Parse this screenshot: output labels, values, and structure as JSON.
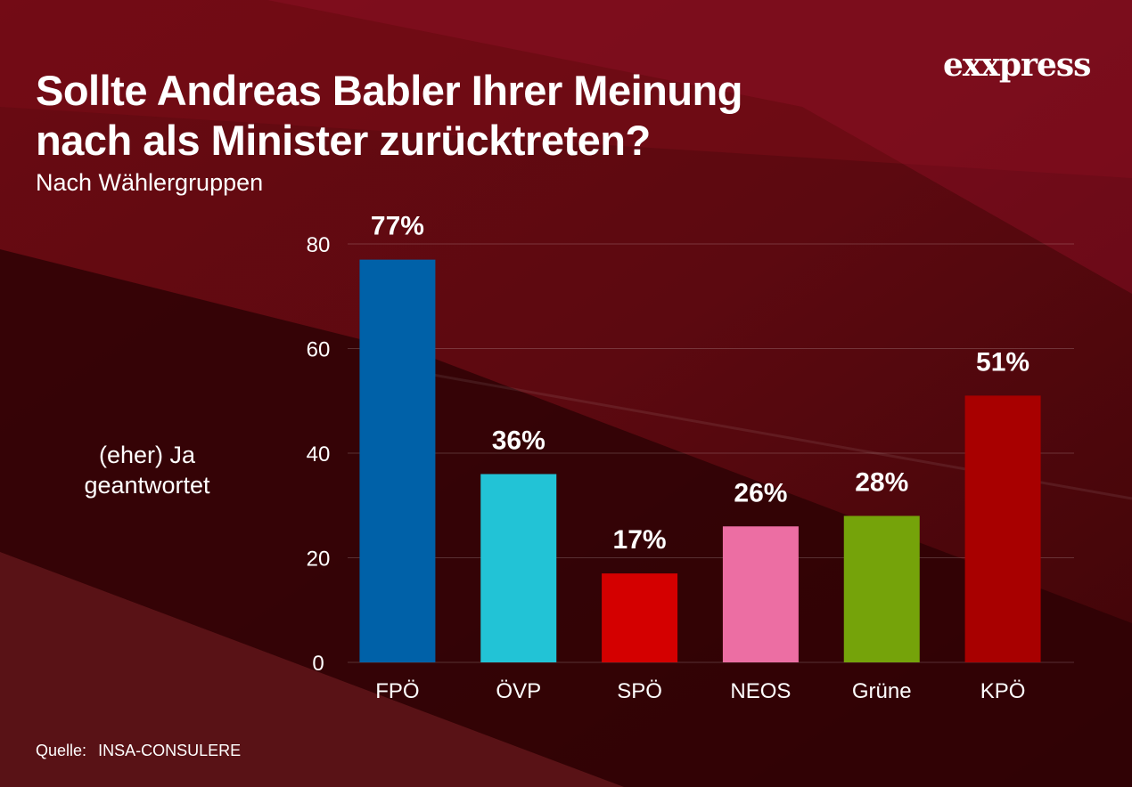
{
  "header": {
    "title": "Sollte Andreas Babler Ihrer Meinung\nnach als Minister zurücktreten?",
    "subtitle": "Nach Wählergruppen",
    "logo": "exxpress"
  },
  "footer": {
    "source_label": "Quelle:",
    "source_value": "INSA-CONSULERE"
  },
  "chart_data": {
    "type": "bar",
    "title": "Sollte Andreas Babler Ihrer Meinung nach als Minister zurücktreten?",
    "subtitle": "Nach Wählergruppen",
    "ylabel": "(eher) Ja\ngeantwortet",
    "xlabel": "",
    "categories": [
      "FPÖ",
      "ÖVP",
      "SPÖ",
      "NEOS",
      "Grüne",
      "KPÖ"
    ],
    "values": [
      77,
      36,
      17,
      26,
      28,
      51
    ],
    "data_labels": [
      "77%",
      "36%",
      "17%",
      "26%",
      "28%",
      "51%"
    ],
    "colors": [
      "#0061a8",
      "#22c3d6",
      "#d40000",
      "#ec6ea3",
      "#75a30a",
      "#a80000"
    ],
    "ylim": [
      0,
      80
    ],
    "yticks": [
      "0",
      "20",
      "40",
      "60",
      "80"
    ],
    "grid": true,
    "legend": "none"
  }
}
